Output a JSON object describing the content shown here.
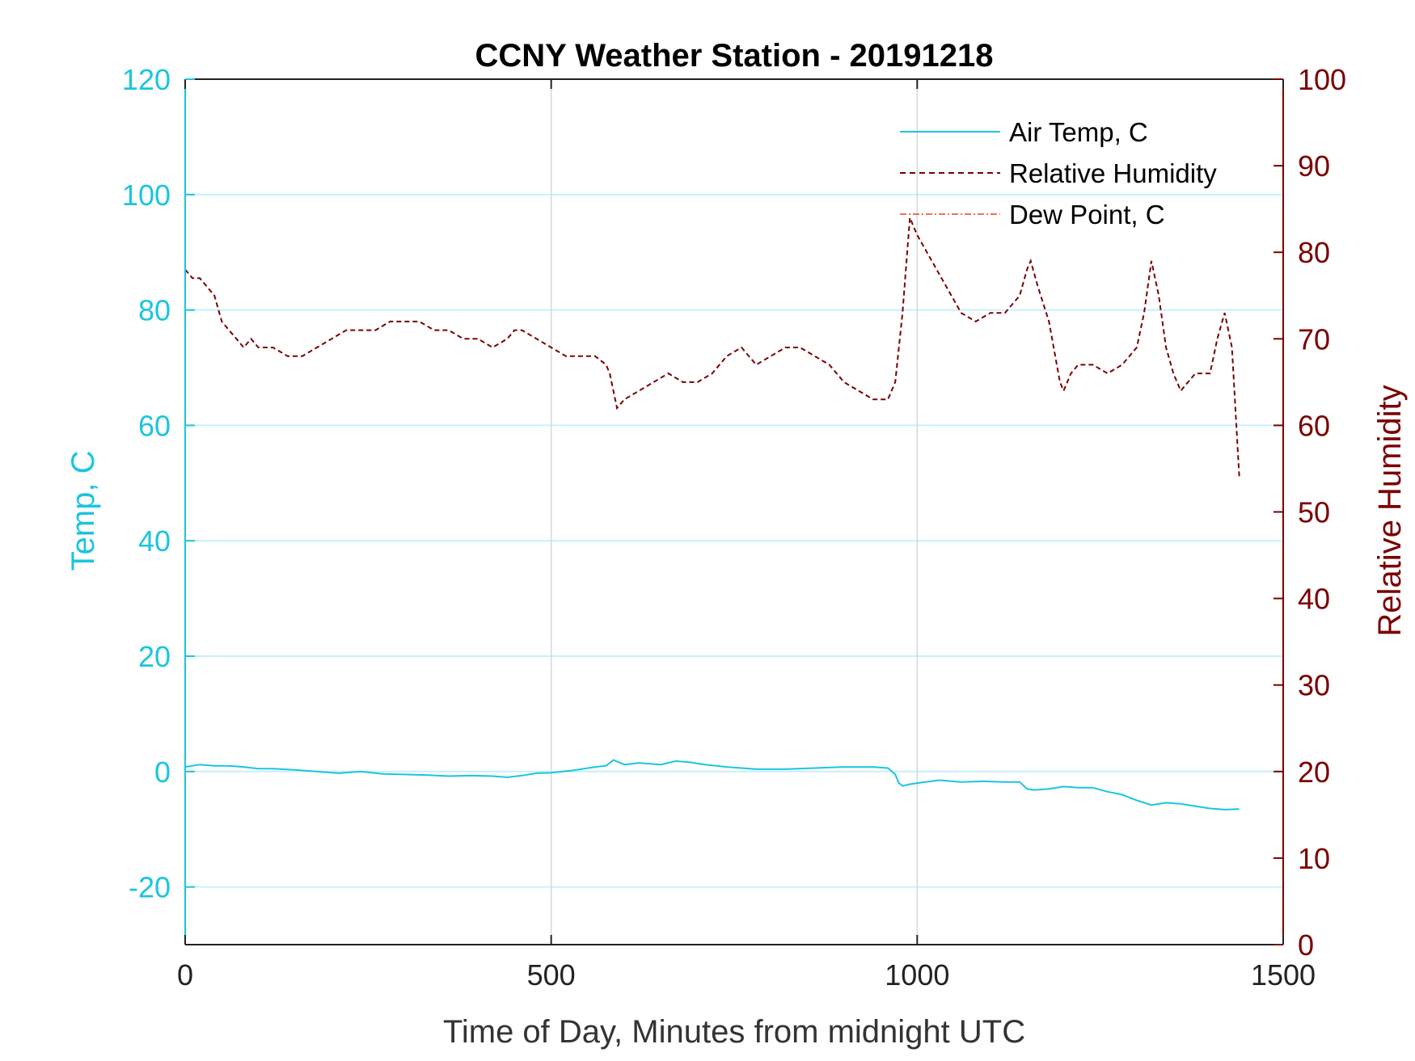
{
  "chart_data": {
    "type": "line",
    "title": "CCNY Weather Station - 20191218",
    "xlabel": "Time of Day, Minutes from midnight UTC",
    "ylabel_left": "Temp, C",
    "ylabel_right": "Relative Humidity",
    "xlim": [
      0,
      1500
    ],
    "ylim_left": [
      -30,
      120
    ],
    "ylim_right": [
      0,
      100
    ],
    "xticks": [
      0,
      500,
      1000,
      1500
    ],
    "yticks_left": [
      -20,
      0,
      20,
      40,
      60,
      80,
      100,
      120
    ],
    "yticks_right": [
      0,
      10,
      20,
      30,
      40,
      50,
      60,
      70,
      80,
      90,
      100
    ],
    "grid": true,
    "legend_position": "top-right",
    "colors": {
      "left_axis": "#1cc5dd",
      "right_axis": "#7a0000",
      "dew_point": "#e8422a",
      "grid": "#c7f0fa",
      "grid_vertical": "#d0d8e0"
    },
    "series": [
      {
        "name": "Air Temp, C",
        "axis": "left",
        "style": "solid",
        "x": [
          0,
          20,
          40,
          60,
          80,
          100,
          120,
          150,
          180,
          210,
          240,
          270,
          300,
          330,
          360,
          390,
          420,
          440,
          460,
          480,
          500,
          530,
          560,
          575,
          585,
          600,
          620,
          650,
          670,
          690,
          710,
          740,
          780,
          820,
          860,
          900,
          940,
          960,
          970,
          975,
          980,
          990,
          1000,
          1030,
          1060,
          1090,
          1120,
          1140,
          1150,
          1160,
          1180,
          1200,
          1220,
          1240,
          1260,
          1280,
          1300,
          1320,
          1340,
          1360,
          1380,
          1400,
          1420,
          1440
        ],
        "values": [
          0.8,
          1.2,
          1.0,
          1.0,
          0.8,
          0.5,
          0.5,
          0.3,
          0.0,
          -0.3,
          0.0,
          -0.4,
          -0.5,
          -0.6,
          -0.8,
          -0.7,
          -0.8,
          -1.0,
          -0.7,
          -0.3,
          -0.2,
          0.2,
          0.8,
          1.0,
          2.0,
          1.2,
          1.5,
          1.2,
          1.8,
          1.6,
          1.2,
          0.8,
          0.4,
          0.4,
          0.6,
          0.8,
          0.8,
          0.6,
          -0.5,
          -2.0,
          -2.5,
          -2.2,
          -2.0,
          -1.5,
          -1.8,
          -1.7,
          -1.8,
          -1.8,
          -3.0,
          -3.2,
          -3.0,
          -2.6,
          -2.8,
          -2.8,
          -3.5,
          -4.0,
          -5.0,
          -5.8,
          -5.4,
          -5.6,
          -6.0,
          -6.4,
          -6.6,
          -6.5
        ]
      },
      {
        "name": "Relative Humidity",
        "axis": "right",
        "style": "dashed",
        "x": [
          0,
          10,
          20,
          30,
          40,
          50,
          60,
          70,
          80,
          90,
          100,
          120,
          140,
          160,
          180,
          200,
          220,
          240,
          260,
          280,
          300,
          320,
          340,
          360,
          380,
          400,
          420,
          440,
          450,
          460,
          480,
          500,
          520,
          540,
          560,
          575,
          580,
          585,
          590,
          600,
          620,
          640,
          660,
          680,
          700,
          720,
          740,
          760,
          780,
          800,
          820,
          840,
          860,
          880,
          900,
          920,
          940,
          960,
          970,
          980,
          990,
          1000,
          1020,
          1040,
          1060,
          1080,
          1100,
          1120,
          1130,
          1140,
          1150,
          1155,
          1165,
          1180,
          1195,
          1200,
          1210,
          1220,
          1240,
          1260,
          1280,
          1300,
          1310,
          1320,
          1330,
          1340,
          1350,
          1360,
          1380,
          1400,
          1410,
          1420,
          1430,
          1440
        ],
        "values": [
          78,
          77,
          77,
          76,
          75,
          72,
          71,
          70,
          69,
          70,
          69,
          69,
          68,
          68,
          69,
          70,
          71,
          71,
          71,
          72,
          72,
          72,
          71,
          71,
          70,
          70,
          69,
          70,
          71,
          71,
          70,
          69,
          68,
          68,
          68,
          67,
          66,
          64,
          62,
          63,
          64,
          65,
          66,
          65,
          65,
          66,
          68,
          69,
          67,
          68,
          69,
          69,
          68,
          67,
          65,
          64,
          63,
          63,
          65,
          73,
          84,
          82,
          79,
          76,
          73,
          72,
          73,
          73,
          74,
          75,
          78,
          79,
          76,
          72,
          65,
          64,
          66,
          67,
          67,
          66,
          67,
          69,
          73,
          79,
          75,
          69,
          66,
          64,
          66,
          66,
          70,
          73,
          69,
          54
        ]
      },
      {
        "name": "Dew Point, C",
        "axis": "left",
        "style": "dashdot",
        "x": [],
        "values": []
      }
    ]
  }
}
